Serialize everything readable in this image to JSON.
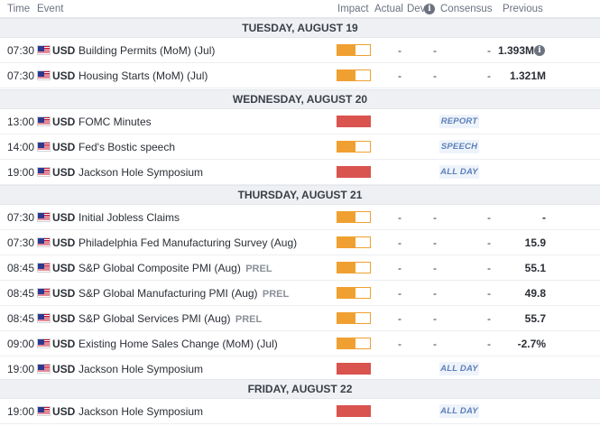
{
  "header": {
    "time": "Time",
    "event": "Event",
    "impact": "Impact",
    "actual": "Actual",
    "dev": "Dev",
    "dev_info_icon": "i",
    "consensus": "Consensus",
    "previous": "Previous"
  },
  "days": [
    {
      "label": "TUESDAY, AUGUST 19",
      "events": [
        {
          "time": "07:30",
          "currency": "USD",
          "name": "Building Permits (MoM) (Jul)",
          "tag": "",
          "impact": "medium",
          "actual": "-",
          "dev": "-",
          "consensus": "-",
          "previous": "1.393M",
          "previous_info": "i",
          "label": ""
        },
        {
          "time": "07:30",
          "currency": "USD",
          "name": "Housing Starts (MoM) (Jul)",
          "tag": "",
          "impact": "medium",
          "actual": "-",
          "dev": "-",
          "consensus": "-",
          "previous": "1.321M",
          "label": ""
        }
      ]
    },
    {
      "label": "WEDNESDAY, AUGUST 20",
      "events": [
        {
          "time": "13:00",
          "currency": "USD",
          "name": "FOMC Minutes",
          "tag": "",
          "impact": "high",
          "label": "REPORT"
        },
        {
          "time": "14:00",
          "currency": "USD",
          "name": "Fed's Bostic speech",
          "tag": "",
          "impact": "medium",
          "label": "SPEECH"
        },
        {
          "time": "19:00",
          "currency": "USD",
          "name": "Jackson Hole Symposium",
          "tag": "",
          "impact": "high",
          "label": "ALL DAY"
        }
      ]
    },
    {
      "label": "THURSDAY, AUGUST 21",
      "events": [
        {
          "time": "07:30",
          "currency": "USD",
          "name": "Initial Jobless Claims",
          "tag": "",
          "impact": "medium",
          "actual": "-",
          "dev": "-",
          "consensus": "-",
          "previous": "-",
          "label": ""
        },
        {
          "time": "07:30",
          "currency": "USD",
          "name": "Philadelphia Fed Manufacturing Survey (Aug)",
          "tag": "",
          "impact": "medium",
          "actual": "-",
          "dev": "-",
          "consensus": "-",
          "previous": "15.9",
          "label": ""
        },
        {
          "time": "08:45",
          "currency": "USD",
          "name": "S&P Global Composite PMI (Aug)",
          "tag": "PREL",
          "impact": "medium",
          "actual": "-",
          "dev": "-",
          "consensus": "-",
          "previous": "55.1",
          "label": ""
        },
        {
          "time": "08:45",
          "currency": "USD",
          "name": "S&P Global Manufacturing PMI (Aug)",
          "tag": "PREL",
          "impact": "medium",
          "actual": "-",
          "dev": "-",
          "consensus": "-",
          "previous": "49.8",
          "label": ""
        },
        {
          "time": "08:45",
          "currency": "USD",
          "name": "S&P Global Services PMI (Aug)",
          "tag": "PREL",
          "impact": "medium",
          "actual": "-",
          "dev": "-",
          "consensus": "-",
          "previous": "55.7",
          "label": ""
        },
        {
          "time": "09:00",
          "currency": "USD",
          "name": "Existing Home Sales Change (MoM) (Jul)",
          "tag": "",
          "impact": "medium",
          "actual": "-",
          "dev": "-",
          "consensus": "-",
          "previous": "-2.7%",
          "label": ""
        },
        {
          "time": "19:00",
          "currency": "USD",
          "name": "Jackson Hole Symposium",
          "tag": "",
          "impact": "high",
          "label": "ALL DAY"
        }
      ]
    },
    {
      "label": "FRIDAY, AUGUST 22",
      "events": [
        {
          "time": "19:00",
          "currency": "USD",
          "name": "Jackson Hole Symposium",
          "tag": "",
          "impact": "high",
          "label": "ALL DAY"
        }
      ]
    }
  ],
  "colors": {
    "impact_medium": "#f0a030",
    "impact_high": "#d9534f",
    "day_header_bg": "#eef0f3",
    "tag_text": "#5b7fb8"
  },
  "icons": {
    "flag": "us-flag-icon",
    "info": "info-icon"
  }
}
